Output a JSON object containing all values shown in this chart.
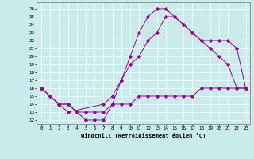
{
  "xlabel": "Windchill (Refroidissement éolien,°C)",
  "xlim": [
    -0.5,
    23.5
  ],
  "ylim": [
    11.5,
    26.8
  ],
  "xticks": [
    0,
    1,
    2,
    3,
    4,
    5,
    6,
    7,
    8,
    9,
    10,
    11,
    12,
    13,
    14,
    15,
    16,
    17,
    18,
    19,
    20,
    21,
    22,
    23
  ],
  "yticks": [
    12,
    13,
    14,
    15,
    16,
    17,
    18,
    19,
    20,
    21,
    22,
    23,
    24,
    25,
    26
  ],
  "bg_color": "#c8ecec",
  "line_color": "#990099",
  "grid_color": "#ffffff",
  "line1_x": [
    0,
    1,
    2,
    3,
    4,
    5,
    6,
    7,
    8,
    9,
    10,
    11,
    12,
    13,
    14,
    15,
    16,
    17,
    18,
    19,
    20,
    21,
    22,
    23
  ],
  "line1_y": [
    16,
    15,
    14,
    14,
    13,
    12,
    12,
    12,
    14,
    17,
    20,
    23,
    25,
    26,
    26,
    25,
    24,
    23,
    22,
    21,
    20,
    19,
    16,
    16
  ],
  "line2_x": [
    0,
    2,
    3,
    7,
    8,
    9,
    10,
    11,
    12,
    13,
    14,
    15,
    16,
    17,
    18,
    19,
    20,
    21,
    22,
    23
  ],
  "line2_y": [
    16,
    14,
    13,
    14,
    15,
    17,
    19,
    20,
    22,
    23,
    25,
    25,
    24,
    23,
    22,
    22,
    22,
    22,
    21,
    16
  ],
  "line3_x": [
    0,
    1,
    2,
    3,
    4,
    5,
    6,
    7,
    8,
    9,
    10,
    11,
    12,
    13,
    14,
    15,
    16,
    17,
    18,
    19,
    20,
    21,
    22,
    23
  ],
  "line3_y": [
    16,
    15,
    14,
    14,
    13,
    13,
    13,
    13,
    14,
    14,
    14,
    15,
    15,
    15,
    15,
    15,
    15,
    15,
    16,
    16,
    16,
    16,
    16,
    16
  ]
}
